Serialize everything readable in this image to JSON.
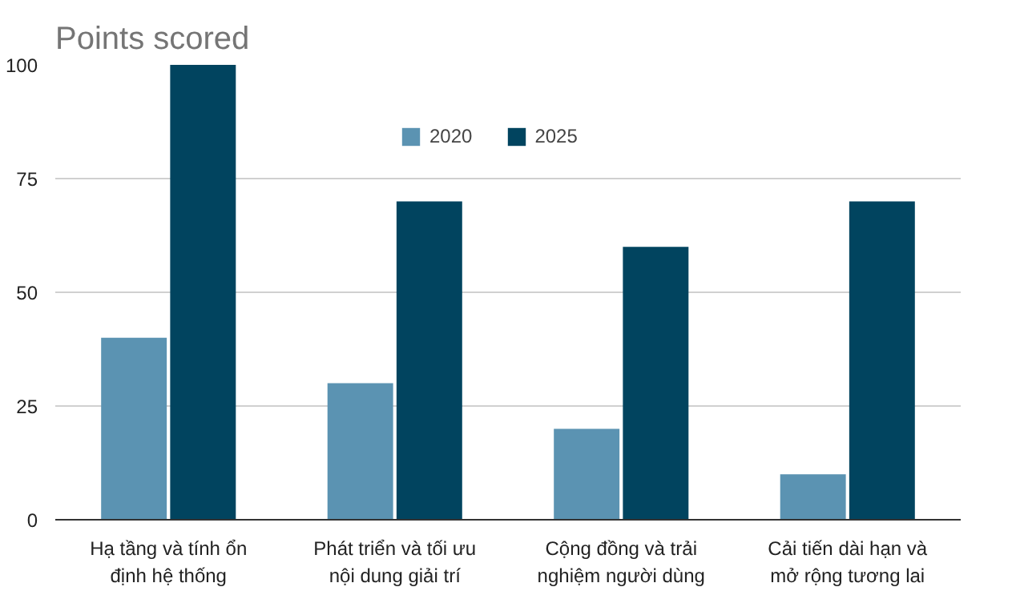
{
  "chart_data": {
    "type": "bar",
    "title": "Points scored",
    "categories": [
      "Hạ tầng và tính ổn định hệ thống",
      "Phát triển và tối ưu nội dung giải trí",
      "Cộng đồng và trải nghiệm người dùng",
      "Cải tiến dài hạn và mở rộng tương lai"
    ],
    "series": [
      {
        "name": "2020",
        "color": "#5b93b2",
        "values": [
          40,
          30,
          20,
          10
        ]
      },
      {
        "name": "2025",
        "color": "#01445f",
        "values": [
          100,
          70,
          60,
          70
        ]
      }
    ],
    "ylim": [
      0,
      100
    ],
    "yticks": [
      0,
      25,
      50,
      75,
      100
    ],
    "grid": "y",
    "legend": "top"
  }
}
